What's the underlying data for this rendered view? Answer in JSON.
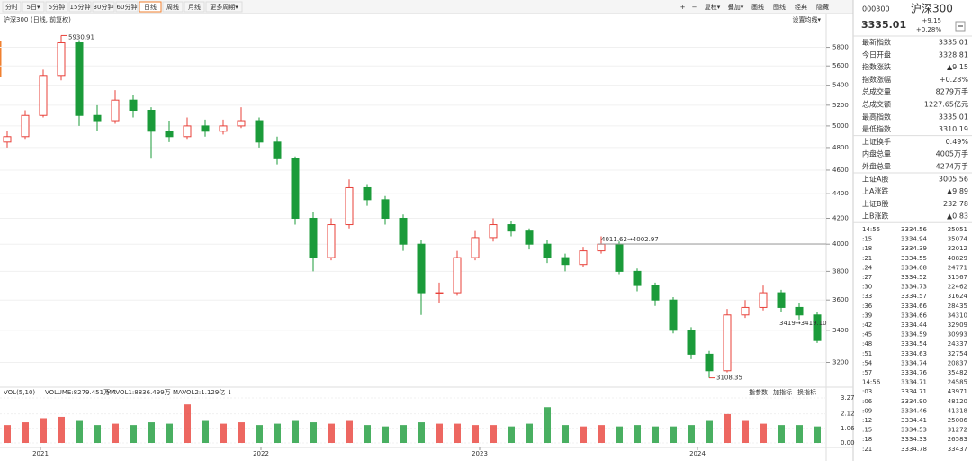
{
  "toolbar": {
    "tabs": [
      "分时",
      "5日▾",
      "5分钟",
      "15分钟",
      "30分钟",
      "60分钟",
      "日线",
      "周线",
      "月线",
      "更多周期▾"
    ],
    "active": 6,
    "right": [
      "+",
      "−",
      "复权▾",
      "叠加▾",
      "画线",
      "图线",
      "经典",
      "隐藏"
    ]
  },
  "chart_data": [
    {
      "type": "candlestick",
      "title": "沪深300",
      "subtitle": "(日线, 前复权)",
      "ma_setting": "设置均线▾",
      "log_scale": true,
      "up_color": "#e8413a",
      "down_color": "#1b9b3a",
      "ylim": [
        3080,
        6130
      ],
      "yticks": [
        3200,
        3400,
        3600,
        3800,
        4000,
        4200,
        4400,
        4600,
        4800,
        5000,
        5200,
        5400,
        5600,
        5800
      ],
      "max_label": 5930.91,
      "min_label": 3108.35,
      "annotations": [
        "4011.62→4002.97",
        "3419→3419.10"
      ],
      "ohlc": [
        [
          4850,
          4950,
          4800,
          4900
        ],
        [
          4900,
          5150,
          4880,
          5100
        ],
        [
          5100,
          5560,
          5080,
          5500
        ],
        [
          5500,
          5930.91,
          5450,
          5850
        ],
        [
          5850,
          5880,
          5000,
          5100
        ],
        [
          5100,
          5200,
          4950,
          5050
        ],
        [
          5050,
          5350,
          5020,
          5250
        ],
        [
          5250,
          5300,
          5080,
          5150
        ],
        [
          5150,
          5180,
          4700,
          4950
        ],
        [
          4950,
          5050,
          4850,
          4900
        ],
        [
          4900,
          5080,
          4880,
          5000
        ],
        [
          5000,
          5060,
          4900,
          4950
        ],
        [
          4950,
          5060,
          4920,
          5000
        ],
        [
          5000,
          5180,
          4980,
          5050
        ],
        [
          5050,
          5080,
          4800,
          4850
        ],
        [
          4850,
          4900,
          4650,
          4700
        ],
        [
          4700,
          4720,
          4150,
          4200
        ],
        [
          4200,
          4250,
          3800,
          3900
        ],
        [
          3900,
          4200,
          3880,
          4150
        ],
        [
          4150,
          4520,
          4120,
          4450
        ],
        [
          4450,
          4480,
          4300,
          4350
        ],
        [
          4350,
          4380,
          4150,
          4200
        ],
        [
          4200,
          4230,
          3950,
          4000
        ],
        [
          4000,
          4030,
          3500,
          3650
        ],
        [
          3650,
          3720,
          3580,
          3650
        ],
        [
          3650,
          3950,
          3630,
          3900
        ],
        [
          3900,
          4100,
          3880,
          4050
        ],
        [
          4050,
          4200,
          4020,
          4150
        ],
        [
          4150,
          4180,
          4060,
          4100
        ],
        [
          4100,
          4120,
          3960,
          4000
        ],
        [
          4000,
          4030,
          3860,
          3900
        ],
        [
          3900,
          3930,
          3800,
          3850
        ],
        [
          3850,
          3980,
          3830,
          3950
        ],
        [
          3950,
          4060,
          3930,
          4000
        ],
        [
          4000,
          4020,
          3780,
          3800
        ],
        [
          3800,
          3820,
          3660,
          3700
        ],
        [
          3700,
          3720,
          3560,
          3600
        ],
        [
          3600,
          3620,
          3380,
          3400
        ],
        [
          3400,
          3420,
          3220,
          3250
        ],
        [
          3250,
          3270,
          3108.35,
          3150
        ],
        [
          3150,
          3540,
          3140,
          3500
        ],
        [
          3500,
          3600,
          3480,
          3550
        ],
        [
          3550,
          3700,
          3530,
          3650
        ],
        [
          3650,
          3670,
          3520,
          3550
        ],
        [
          3550,
          3580,
          3470,
          3500
        ],
        [
          3500,
          3520,
          3320,
          3335.01
        ]
      ]
    },
    {
      "type": "bar",
      "title": "VOL(5,10)",
      "legend": [
        "VOLUME:8279.451万 ↑",
        "MAVOL1:8836.499万 ↓",
        "MAVOL2:1.129亿 ↓"
      ],
      "buttons": [
        "指参数",
        "加指标",
        "换指标"
      ],
      "ylim": [
        0,
        3.27
      ],
      "yticks": [
        {
          "value": 0,
          "label": "0.00"
        },
        1.06,
        2.12,
        3.27
      ],
      "xticks": [
        {
          "value": 1.85,
          "label": "2021"
        },
        {
          "value": 14.1,
          "label": "2022"
        },
        {
          "value": 26.25,
          "label": "2023"
        },
        {
          "value": 38.35,
          "label": "2024"
        }
      ],
      "values": [
        1.3,
        1.5,
        1.8,
        1.9,
        1.6,
        1.3,
        1.4,
        1.3,
        1.5,
        1.4,
        2.8,
        1.6,
        1.4,
        1.5,
        1.3,
        1.4,
        1.6,
        1.5,
        1.4,
        1.6,
        1.3,
        1.2,
        1.3,
        1.5,
        1.4,
        1.4,
        1.3,
        1.3,
        1.2,
        1.4,
        2.6,
        1.3,
        1.2,
        1.3,
        1.2,
        1.3,
        1.2,
        1.2,
        1.3,
        1.6,
        2.1,
        1.6,
        1.4,
        1.3,
        1.3,
        1.2
      ]
    }
  ],
  "panel": {
    "code": "000300",
    "name": "沪深300",
    "price": 3335.01,
    "change": "+9.15",
    "change_pct": "+0.28%",
    "stats": [
      {
        "label": "最新指数",
        "value": "3335.01",
        "color": "#e8413a"
      },
      {
        "label": "今日开盘",
        "value": "3328.81",
        "color": "#e8413a"
      },
      {
        "label": "指数涨跌",
        "value": "▲9.15",
        "color": "#e8413a"
      },
      {
        "label": "指数涨幅",
        "value": "+0.28%",
        "color": "#e8413a"
      },
      {
        "label": "总成交量",
        "value": "8279万手",
        "color": "#333333"
      },
      {
        "label": "总成交额",
        "value": "1227.65亿元",
        "color": "#1f6fc5"
      },
      {
        "label": "最高指数",
        "value": "3335.01",
        "color": "#e8413a"
      },
      {
        "label": "最低指数",
        "value": "3310.19",
        "color": "#1b9b3a"
      },
      {
        "label": "上证换手",
        "value": "0.49%",
        "color": "#333333"
      },
      {
        "label": "内盘总量",
        "value": "4005万手",
        "color": "#1b9b3a"
      },
      {
        "label": "外盘总量",
        "value": "4274万手",
        "color": "#e8413a"
      },
      {
        "label": "上证A股",
        "value": "3005.56",
        "color": "#e8413a"
      },
      {
        "label": "上A涨跌",
        "value": "▲9.89",
        "color": "#e8413a"
      },
      {
        "label": "上证B股",
        "value": "232.78",
        "color": "#e8413a"
      },
      {
        "label": "上B涨跌",
        "value": "▲0.83",
        "color": "#e8413a"
      }
    ],
    "trades": [
      [
        "14:55",
        "3334.56",
        "25051"
      ],
      [
        ":15",
        "3334.94",
        "35074"
      ],
      [
        ":18",
        "3334.39",
        "32012"
      ],
      [
        ":21",
        "3334.55",
        "40829"
      ],
      [
        ":24",
        "3334.68",
        "24771"
      ],
      [
        ":27",
        "3334.52",
        "31567"
      ],
      [
        ":30",
        "3334.73",
        "22462"
      ],
      [
        ":33",
        "3334.57",
        "31624"
      ],
      [
        ":36",
        "3334.66",
        "28435"
      ],
      [
        ":39",
        "3334.66",
        "34310"
      ],
      [
        ":42",
        "3334.44",
        "32909"
      ],
      [
        ":45",
        "3334.59",
        "30993"
      ],
      [
        ":48",
        "3334.54",
        "24337"
      ],
      [
        ":51",
        "3334.63",
        "32754"
      ],
      [
        ":54",
        "3334.74",
        "20837"
      ],
      [
        ":57",
        "3334.76",
        "35482"
      ],
      [
        "14:56",
        "3334.71",
        "24585"
      ],
      [
        ":03",
        "3334.71",
        "43971"
      ],
      [
        ":06",
        "3334.90",
        "48120"
      ],
      [
        ":09",
        "3334.46",
        "41318"
      ],
      [
        ":12",
        "3334.41",
        "25006"
      ],
      [
        ":15",
        "3334.53",
        "31272"
      ],
      [
        ":18",
        "3334.33",
        "26583"
      ],
      [
        ":21",
        "3334.78",
        "33437"
      ]
    ]
  }
}
